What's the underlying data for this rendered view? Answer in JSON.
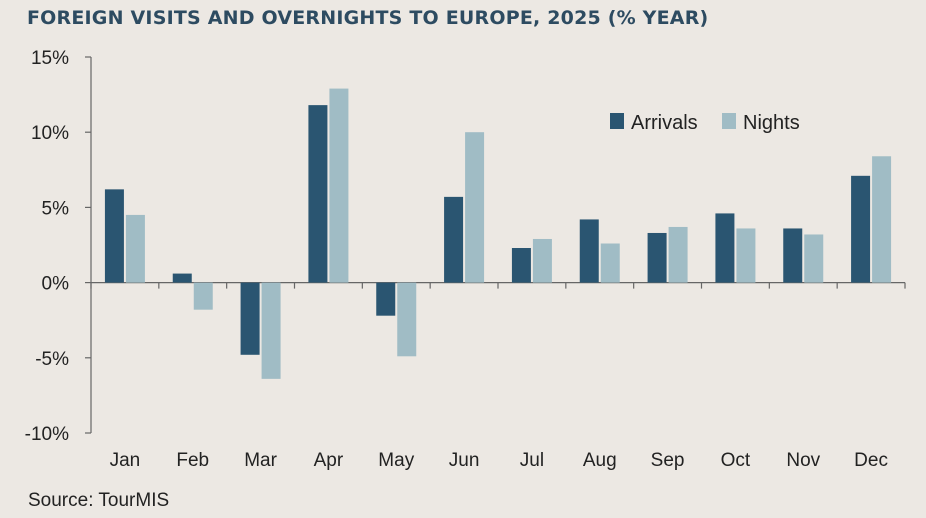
{
  "title": "FOREIGN VISITS AND OVERNIGHTS TO EUROPE, 2025 (% YEAR)",
  "source": "Source: TourMIS",
  "colors": {
    "arrivals": "#2a5571",
    "nights": "#a0bcc5",
    "axis": "#666666",
    "title": "#2d4b61"
  },
  "chart_data": {
    "type": "bar",
    "title": "FOREIGN VISITS AND OVERNIGHTS TO EUROPE, 2025 (% YEAR)",
    "categories": [
      "Jan",
      "Feb",
      "Mar",
      "Apr",
      "May",
      "Jun",
      "Jul",
      "Aug",
      "Sep",
      "Oct",
      "Nov",
      "Dec"
    ],
    "series": [
      {
        "name": "Arrivals",
        "values": [
          6.2,
          0.6,
          -4.8,
          11.8,
          -2.2,
          5.7,
          2.3,
          4.2,
          3.3,
          4.6,
          3.6,
          7.1
        ]
      },
      {
        "name": "Nights",
        "values": [
          4.5,
          -1.8,
          -6.4,
          12.9,
          -4.9,
          10.0,
          2.9,
          2.6,
          3.7,
          3.6,
          3.2,
          8.4
        ]
      }
    ],
    "ylim": [
      -10,
      15
    ],
    "yticks": [
      -10,
      -5,
      0,
      5,
      10,
      15
    ],
    "ytick_labels": [
      "-10%",
      "-5%",
      "0%",
      "5%",
      "10%",
      "15%"
    ],
    "xlabel": "",
    "ylabel": "",
    "legend_position": "top-right",
    "grid": false
  }
}
